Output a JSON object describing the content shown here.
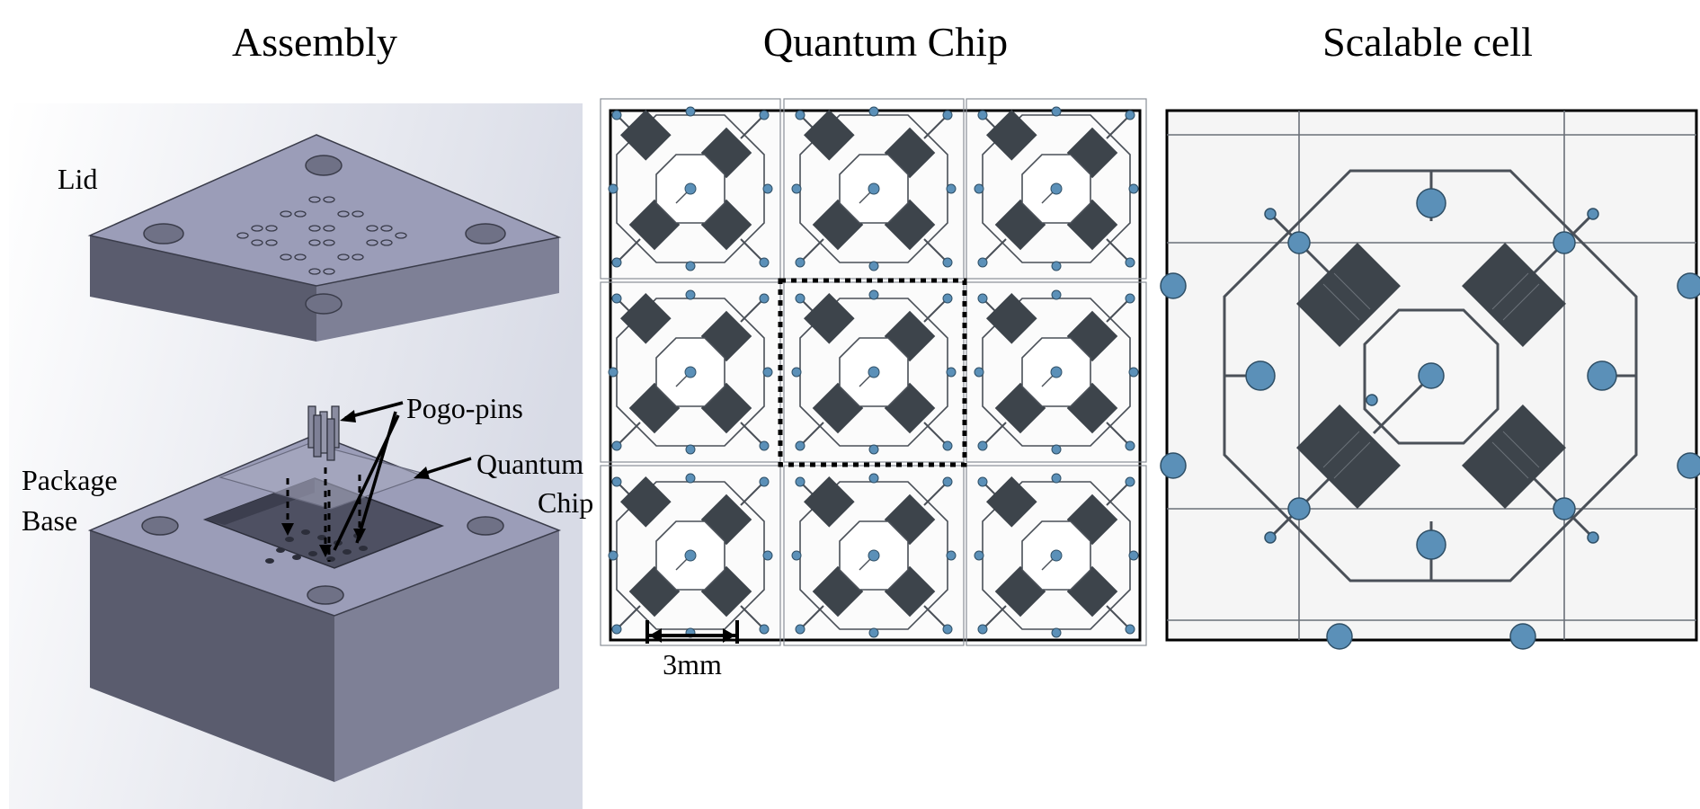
{
  "titles": {
    "assembly": "Assembly",
    "chip": "Quantum Chip",
    "cell": "Scalable cell"
  },
  "labels": {
    "lid": "Lid",
    "pogo": "Pogo-pins",
    "qchip_line1": "Quantum",
    "qchip_line2": "Chip",
    "base_line1": "Package",
    "base_line2": "Base",
    "scale": "3mm"
  },
  "colors": {
    "metal_top": "#9b9db8",
    "metal_left": "#5a5c6e",
    "metal_right": "#7e8096",
    "pad": "#5b90b8",
    "trace": "#4a5058",
    "resonator": "#3d444b"
  }
}
